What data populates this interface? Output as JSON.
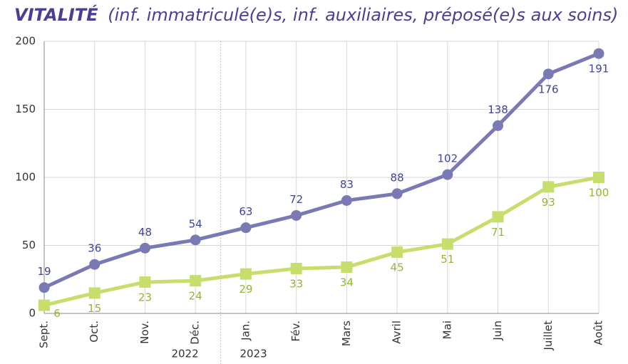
{
  "chart_data": {
    "type": "line",
    "title": "VITALITÉ",
    "subtitle": "(inf. immatriculé(e)s, inf. auxiliaires, préposé(e)s aux soins)",
    "categories": [
      "Sept.",
      "Oct.",
      "Nov.",
      "Déc.",
      "Jan.",
      "Fév.",
      "Mars",
      "Avril",
      "Mai",
      "Juin",
      "Juillet",
      "Août"
    ],
    "series": [
      {
        "color": "#7b79b3",
        "label_color": "#3f4399",
        "marker": "circle",
        "values": [
          19,
          36,
          48,
          54,
          63,
          72,
          83,
          88,
          102,
          138,
          176,
          191
        ]
      },
      {
        "color": "#c8de6c",
        "label_color": "#93b43a",
        "marker": "square",
        "values": [
          6,
          15,
          23,
          24,
          29,
          33,
          34,
          45,
          51,
          71,
          93,
          100
        ]
      }
    ],
    "ylim": [
      0,
      200
    ],
    "yticks": [
      0,
      50,
      100,
      150,
      200
    ],
    "grid": true,
    "year_labels": [
      "2022",
      "2023"
    ]
  }
}
